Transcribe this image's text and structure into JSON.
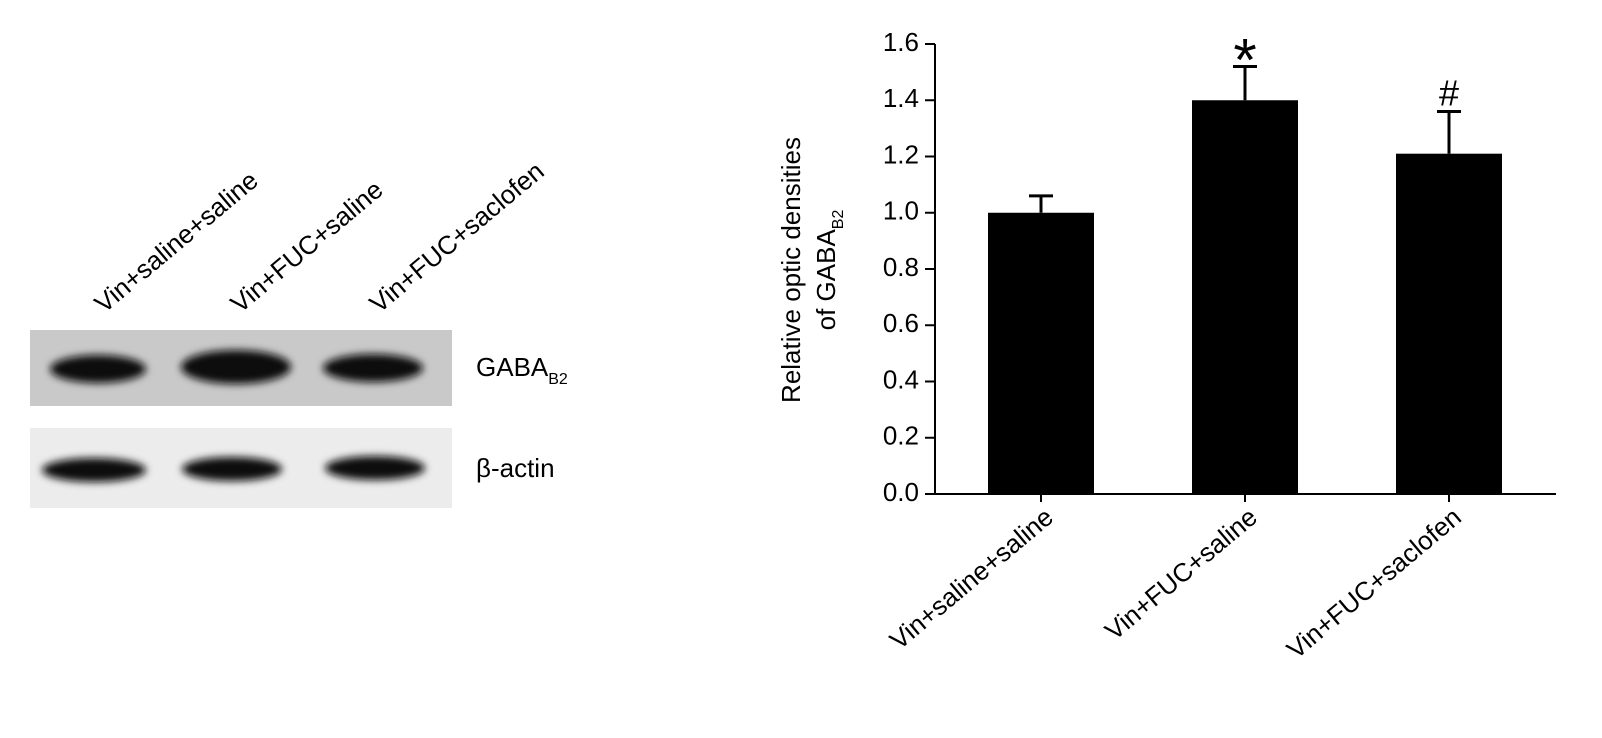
{
  "blot": {
    "lanes": [
      "Vin+saline+saline",
      "Vin+FUC+saline",
      "Vin+FUC+saclofen"
    ],
    "bands": [
      {
        "label": "GABA",
        "subscript": "B2"
      },
      {
        "label": "β-actin"
      }
    ]
  },
  "chart_data": {
    "type": "bar",
    "ylabel": {
      "line1": "Relative optic densities",
      "line2": "of GABA",
      "subscript": "B2"
    },
    "categories": [
      "Vin+saline+saline",
      "Vin+FUC+saline",
      "Vin+FUC+saclofen"
    ],
    "values": [
      1.0,
      1.4,
      1.21
    ],
    "errors": [
      0.06,
      0.12,
      0.15
    ],
    "annotations": [
      null,
      "*",
      "#"
    ],
    "color": "#000000",
    "ylim": [
      0,
      1.6
    ],
    "yticks": [
      {
        "value": 0,
        "label": "0.0"
      },
      0.2,
      0.4,
      0.6,
      0.8,
      {
        "value": 1,
        "label": "1.0"
      },
      1.2,
      1.4,
      1.6
    ],
    "grid": false
  }
}
